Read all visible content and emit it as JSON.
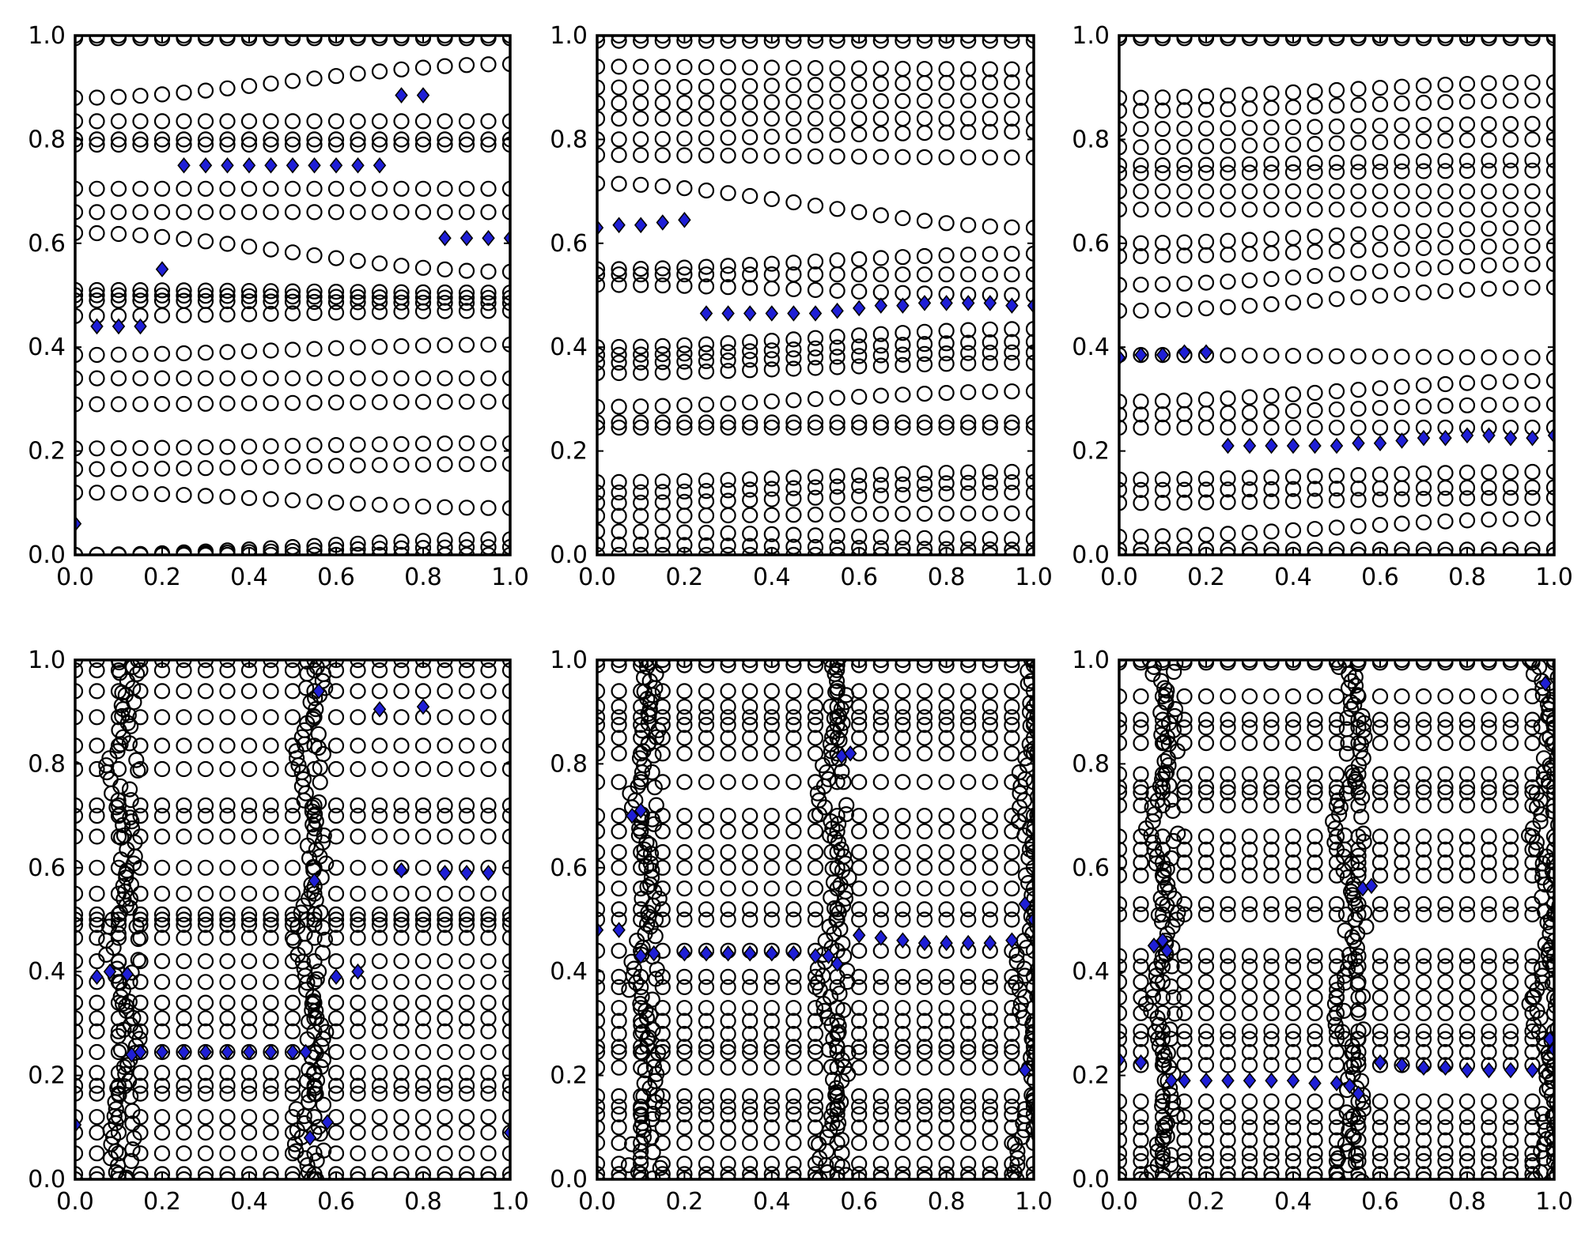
{
  "figure": {
    "colors": {
      "circle_edge": "#000000",
      "diamond_fill": "#1f1fd6",
      "diamond_edge": "#000000",
      "frame": "#000000"
    }
  },
  "chart_data": [
    {
      "type": "scatter",
      "panel": "top-left",
      "xlim": [
        0,
        1
      ],
      "ylim": [
        0,
        1
      ],
      "grid": false,
      "x_ticks": [
        "0.0",
        "0.2",
        "0.4",
        "0.6",
        "0.8",
        "1.0"
      ],
      "y_ticks": [
        "0.0",
        "0.2",
        "0.4",
        "0.6",
        "0.8",
        "1.0"
      ],
      "layout": "layered",
      "circle_levels": [
        [
          0.0,
          0.0
        ],
        [
          0.0,
          0.015
        ],
        [
          0.0,
          0.03
        ],
        [
          0.12,
          0.09
        ],
        [
          0.165,
          0.175
        ],
        [
          0.205,
          0.215
        ],
        [
          0.29,
          0.295
        ],
        [
          0.34,
          0.34
        ],
        [
          0.385,
          0.405
        ],
        [
          0.46,
          0.47
        ],
        [
          0.49,
          0.485
        ],
        [
          0.5,
          0.495
        ],
        [
          0.51,
          0.505
        ],
        [
          0.62,
          0.545
        ],
        [
          0.66,
          0.66
        ],
        [
          0.705,
          0.705
        ],
        [
          0.79,
          0.79
        ],
        [
          0.8,
          0.8
        ],
        [
          0.835,
          0.835
        ],
        [
          0.88,
          0.945
        ],
        [
          0.995,
          0.995
        ],
        [
          1.0,
          1.0
        ]
      ],
      "diamonds": [
        {
          "x": 0.0,
          "y": 0.06
        },
        {
          "x": 0.05,
          "y": 0.44
        },
        {
          "x": 0.1,
          "y": 0.44
        },
        {
          "x": 0.15,
          "y": 0.44
        },
        {
          "x": 0.2,
          "y": 0.55
        },
        {
          "x": 0.25,
          "y": 0.75
        },
        {
          "x": 0.3,
          "y": 0.75
        },
        {
          "x": 0.35,
          "y": 0.75
        },
        {
          "x": 0.4,
          "y": 0.75
        },
        {
          "x": 0.45,
          "y": 0.75
        },
        {
          "x": 0.5,
          "y": 0.75
        },
        {
          "x": 0.55,
          "y": 0.75
        },
        {
          "x": 0.6,
          "y": 0.75
        },
        {
          "x": 0.65,
          "y": 0.75
        },
        {
          "x": 0.7,
          "y": 0.75
        },
        {
          "x": 0.75,
          "y": 0.885
        },
        {
          "x": 0.8,
          "y": 0.885
        },
        {
          "x": 0.85,
          "y": 0.61
        },
        {
          "x": 0.9,
          "y": 0.61
        },
        {
          "x": 0.95,
          "y": 0.61
        },
        {
          "x": 1.0,
          "y": 0.61
        }
      ]
    },
    {
      "type": "scatter",
      "panel": "top-middle",
      "xlim": [
        0,
        1
      ],
      "ylim": [
        0,
        1
      ],
      "grid": false,
      "x_ticks": [
        "0.0",
        "0.2",
        "0.4",
        "0.6",
        "0.8",
        "1.0"
      ],
      "y_ticks": [
        "0.0",
        "0.2",
        "0.4",
        "0.6",
        "0.8",
        "1.0"
      ],
      "layout": "layered",
      "circle_levels": [
        [
          0.0,
          0.0
        ],
        [
          0.02,
          0.01
        ],
        [
          0.045,
          0.03
        ],
        [
          0.075,
          0.08
        ],
        [
          0.1,
          0.12
        ],
        [
          0.12,
          0.14
        ],
        [
          0.14,
          0.16
        ],
        [
          0.245,
          0.245
        ],
        [
          0.255,
          0.255
        ],
        [
          0.285,
          0.315
        ],
        [
          0.35,
          0.37
        ],
        [
          0.37,
          0.39
        ],
        [
          0.385,
          0.41
        ],
        [
          0.4,
          0.435
        ],
        [
          0.52,
          0.5
        ],
        [
          0.54,
          0.54
        ],
        [
          0.55,
          0.58
        ],
        [
          0.715,
          0.63
        ],
        [
          0.77,
          0.765
        ],
        [
          0.8,
          0.815
        ],
        [
          0.84,
          0.84
        ],
        [
          0.87,
          0.875
        ],
        [
          0.9,
          0.91
        ],
        [
          0.94,
          0.935
        ],
        [
          0.99,
          0.99
        ],
        [
          1.0,
          1.0
        ]
      ],
      "diamonds": [
        {
          "x": 0.0,
          "y": 0.63
        },
        {
          "x": 0.05,
          "y": 0.635
        },
        {
          "x": 0.1,
          "y": 0.635
        },
        {
          "x": 0.15,
          "y": 0.64
        },
        {
          "x": 0.2,
          "y": 0.645
        },
        {
          "x": 0.25,
          "y": 0.465
        },
        {
          "x": 0.3,
          "y": 0.465
        },
        {
          "x": 0.35,
          "y": 0.465
        },
        {
          "x": 0.4,
          "y": 0.465
        },
        {
          "x": 0.45,
          "y": 0.465
        },
        {
          "x": 0.5,
          "y": 0.465
        },
        {
          "x": 0.55,
          "y": 0.47
        },
        {
          "x": 0.6,
          "y": 0.475
        },
        {
          "x": 0.65,
          "y": 0.48
        },
        {
          "x": 0.7,
          "y": 0.48
        },
        {
          "x": 0.75,
          "y": 0.485
        },
        {
          "x": 0.8,
          "y": 0.485
        },
        {
          "x": 0.85,
          "y": 0.485
        },
        {
          "x": 0.9,
          "y": 0.485
        },
        {
          "x": 0.95,
          "y": 0.48
        },
        {
          "x": 1.0,
          "y": 0.48
        }
      ]
    },
    {
      "type": "scatter",
      "panel": "top-right",
      "xlim": [
        0,
        1
      ],
      "ylim": [
        0,
        1
      ],
      "grid": false,
      "x_ticks": [
        "0.0",
        "0.2",
        "0.4",
        "0.6",
        "0.8",
        "1.0"
      ],
      "y_ticks": [
        "0.0",
        "0.2",
        "0.4",
        "0.6",
        "0.8",
        "1.0"
      ],
      "layout": "layered",
      "circle_levels": [
        [
          0.0,
          0.0
        ],
        [
          0.01,
          0.01
        ],
        [
          0.035,
          0.07
        ],
        [
          0.1,
          0.11
        ],
        [
          0.125,
          0.13
        ],
        [
          0.145,
          0.16
        ],
        [
          0.245,
          0.245
        ],
        [
          0.27,
          0.29
        ],
        [
          0.295,
          0.335
        ],
        [
          0.385,
          0.38
        ],
        [
          0.47,
          0.515
        ],
        [
          0.52,
          0.56
        ],
        [
          0.575,
          0.595
        ],
        [
          0.6,
          0.63
        ],
        [
          0.665,
          0.665
        ],
        [
          0.7,
          0.7
        ],
        [
          0.735,
          0.74
        ],
        [
          0.75,
          0.76
        ],
        [
          0.785,
          0.8
        ],
        [
          0.82,
          0.83
        ],
        [
          0.855,
          0.875
        ],
        [
          0.88,
          0.91
        ],
        [
          0.995,
          0.995
        ],
        [
          1.0,
          1.0
        ]
      ],
      "diamonds": [
        {
          "x": 0.0,
          "y": 0.38
        },
        {
          "x": 0.05,
          "y": 0.385
        },
        {
          "x": 0.1,
          "y": 0.385
        },
        {
          "x": 0.15,
          "y": 0.39
        },
        {
          "x": 0.2,
          "y": 0.39
        },
        {
          "x": 0.25,
          "y": 0.21
        },
        {
          "x": 0.3,
          "y": 0.21
        },
        {
          "x": 0.35,
          "y": 0.21
        },
        {
          "x": 0.4,
          "y": 0.21
        },
        {
          "x": 0.45,
          "y": 0.21
        },
        {
          "x": 0.5,
          "y": 0.21
        },
        {
          "x": 0.55,
          "y": 0.215
        },
        {
          "x": 0.6,
          "y": 0.215
        },
        {
          "x": 0.65,
          "y": 0.22
        },
        {
          "x": 0.7,
          "y": 0.225
        },
        {
          "x": 0.75,
          "y": 0.225
        },
        {
          "x": 0.8,
          "y": 0.23
        },
        {
          "x": 0.85,
          "y": 0.23
        },
        {
          "x": 0.9,
          "y": 0.225
        },
        {
          "x": 0.95,
          "y": 0.225
        },
        {
          "x": 1.0,
          "y": 0.23
        }
      ]
    },
    {
      "type": "scatter",
      "panel": "bottom-left",
      "xlim": [
        0,
        1
      ],
      "ylim": [
        0,
        1
      ],
      "grid": false,
      "x_ticks": [
        "0.0",
        "0.2",
        "0.4",
        "0.6",
        "0.8",
        "1.0"
      ],
      "y_ticks": [
        "0.0",
        "0.2",
        "0.4",
        "0.6",
        "0.8",
        "1.0"
      ],
      "layout": "banded",
      "circle_rows": [
        0.0,
        0.01,
        0.05,
        0.09,
        0.12,
        0.165,
        0.18,
        0.205,
        0.245,
        0.285,
        0.31,
        0.34,
        0.38,
        0.42,
        0.465,
        0.49,
        0.5,
        0.51,
        0.55,
        0.6,
        0.66,
        0.7,
        0.72,
        0.79,
        0.835,
        0.89,
        0.94,
        0.98,
        1.0
      ],
      "circle_columns": [
        0.0,
        0.05,
        0.1,
        0.15,
        0.2,
        0.25,
        0.3,
        0.35,
        0.4,
        0.45,
        0.5,
        0.55,
        0.6,
        0.65,
        0.7,
        0.75,
        0.8,
        0.85,
        0.9,
        0.95,
        1.0
      ],
      "dense_bands": [
        0.11,
        0.54
      ],
      "diamonds": [
        {
          "x": 0.0,
          "y": 0.105
        },
        {
          "x": 0.05,
          "y": 0.39
        },
        {
          "x": 0.08,
          "y": 0.4
        },
        {
          "x": 0.12,
          "y": 0.395
        },
        {
          "x": 0.13,
          "y": 0.24
        },
        {
          "x": 0.15,
          "y": 0.245
        },
        {
          "x": 0.2,
          "y": 0.245
        },
        {
          "x": 0.25,
          "y": 0.245
        },
        {
          "x": 0.3,
          "y": 0.245
        },
        {
          "x": 0.35,
          "y": 0.245
        },
        {
          "x": 0.4,
          "y": 0.245
        },
        {
          "x": 0.45,
          "y": 0.245
        },
        {
          "x": 0.5,
          "y": 0.245
        },
        {
          "x": 0.53,
          "y": 0.245
        },
        {
          "x": 0.54,
          "y": 0.08
        },
        {
          "x": 0.58,
          "y": 0.11
        },
        {
          "x": 0.56,
          "y": 0.94
        },
        {
          "x": 0.55,
          "y": 0.575
        },
        {
          "x": 0.6,
          "y": 0.39
        },
        {
          "x": 0.65,
          "y": 0.4
        },
        {
          "x": 0.7,
          "y": 0.905
        },
        {
          "x": 0.8,
          "y": 0.91
        },
        {
          "x": 0.75,
          "y": 0.595
        },
        {
          "x": 0.85,
          "y": 0.59
        },
        {
          "x": 0.9,
          "y": 0.59
        },
        {
          "x": 0.95,
          "y": 0.59
        },
        {
          "x": 1.0,
          "y": 0.09
        }
      ]
    },
    {
      "type": "scatter",
      "panel": "bottom-middle",
      "xlim": [
        0,
        1
      ],
      "ylim": [
        0,
        1
      ],
      "grid": false,
      "x_ticks": [
        "0.0",
        "0.2",
        "0.4",
        "0.6",
        "0.8",
        "1.0"
      ],
      "y_ticks": [
        "0.0",
        "0.2",
        "0.4",
        "0.6",
        "0.8",
        "1.0"
      ],
      "layout": "banded",
      "circle_rows": [
        0.0,
        0.01,
        0.03,
        0.07,
        0.1,
        0.125,
        0.14,
        0.16,
        0.215,
        0.245,
        0.255,
        0.28,
        0.305,
        0.33,
        0.37,
        0.39,
        0.44,
        0.5,
        0.52,
        0.56,
        0.6,
        0.63,
        0.67,
        0.7,
        0.765,
        0.82,
        0.85,
        0.875,
        0.89,
        0.91,
        0.94,
        0.99,
        1.0
      ],
      "circle_columns": [
        0.0,
        0.05,
        0.1,
        0.15,
        0.2,
        0.25,
        0.3,
        0.35,
        0.4,
        0.45,
        0.5,
        0.55,
        0.6,
        0.65,
        0.7,
        0.75,
        0.8,
        0.85,
        0.9,
        0.95,
        1.0
      ],
      "dense_bands": [
        0.11,
        0.54,
        0.99
      ],
      "diamonds": [
        {
          "x": 0.0,
          "y": 0.48
        },
        {
          "x": 0.05,
          "y": 0.48
        },
        {
          "x": 0.08,
          "y": 0.7
        },
        {
          "x": 0.1,
          "y": 0.71
        },
        {
          "x": 0.1,
          "y": 0.43
        },
        {
          "x": 0.13,
          "y": 0.435
        },
        {
          "x": 0.2,
          "y": 0.435
        },
        {
          "x": 0.25,
          "y": 0.435
        },
        {
          "x": 0.3,
          "y": 0.435
        },
        {
          "x": 0.35,
          "y": 0.435
        },
        {
          "x": 0.4,
          "y": 0.435
        },
        {
          "x": 0.45,
          "y": 0.435
        },
        {
          "x": 0.5,
          "y": 0.43
        },
        {
          "x": 0.53,
          "y": 0.43
        },
        {
          "x": 0.55,
          "y": 0.415
        },
        {
          "x": 0.56,
          "y": 0.815
        },
        {
          "x": 0.58,
          "y": 0.82
        },
        {
          "x": 0.6,
          "y": 0.47
        },
        {
          "x": 0.65,
          "y": 0.465
        },
        {
          "x": 0.7,
          "y": 0.46
        },
        {
          "x": 0.75,
          "y": 0.455
        },
        {
          "x": 0.8,
          "y": 0.455
        },
        {
          "x": 0.85,
          "y": 0.455
        },
        {
          "x": 0.9,
          "y": 0.455
        },
        {
          "x": 0.95,
          "y": 0.46
        },
        {
          "x": 0.98,
          "y": 0.53
        },
        {
          "x": 1.0,
          "y": 0.5
        },
        {
          "x": 0.98,
          "y": 0.21
        }
      ]
    },
    {
      "type": "scatter",
      "panel": "bottom-right",
      "xlim": [
        0,
        1
      ],
      "ylim": [
        0,
        1
      ],
      "grid": false,
      "x_ticks": [
        "0.0",
        "0.2",
        "0.4",
        "0.6",
        "0.8",
        "1.0"
      ],
      "y_ticks": [
        "0.0",
        "0.2",
        "0.4",
        "0.6",
        "0.8",
        "1.0"
      ],
      "layout": "banded",
      "circle_rows": [
        0.0,
        0.01,
        0.035,
        0.05,
        0.075,
        0.1,
        0.12,
        0.15,
        0.22,
        0.245,
        0.27,
        0.285,
        0.32,
        0.35,
        0.38,
        0.41,
        0.43,
        0.51,
        0.53,
        0.585,
        0.61,
        0.635,
        0.66,
        0.72,
        0.745,
        0.755,
        0.78,
        0.84,
        0.87,
        0.885,
        0.93,
        0.995,
        1.0
      ],
      "circle_columns": [
        0.0,
        0.05,
        0.1,
        0.15,
        0.2,
        0.25,
        0.3,
        0.35,
        0.4,
        0.45,
        0.5,
        0.55,
        0.6,
        0.65,
        0.7,
        0.75,
        0.8,
        0.85,
        0.9,
        0.95,
        1.0
      ],
      "dense_bands": [
        0.1,
        0.53,
        0.98
      ],
      "diamonds": [
        {
          "x": 0.0,
          "y": 0.23
        },
        {
          "x": 0.05,
          "y": 0.225
        },
        {
          "x": 0.08,
          "y": 0.45
        },
        {
          "x": 0.1,
          "y": 0.46
        },
        {
          "x": 0.11,
          "y": 0.44
        },
        {
          "x": 0.12,
          "y": 0.19
        },
        {
          "x": 0.15,
          "y": 0.19
        },
        {
          "x": 0.2,
          "y": 0.19
        },
        {
          "x": 0.25,
          "y": 0.19
        },
        {
          "x": 0.3,
          "y": 0.19
        },
        {
          "x": 0.35,
          "y": 0.19
        },
        {
          "x": 0.4,
          "y": 0.19
        },
        {
          "x": 0.45,
          "y": 0.185
        },
        {
          "x": 0.5,
          "y": 0.185
        },
        {
          "x": 0.53,
          "y": 0.18
        },
        {
          "x": 0.55,
          "y": 0.165
        },
        {
          "x": 0.56,
          "y": 0.56
        },
        {
          "x": 0.58,
          "y": 0.565
        },
        {
          "x": 0.6,
          "y": 0.225
        },
        {
          "x": 0.65,
          "y": 0.22
        },
        {
          "x": 0.7,
          "y": 0.215
        },
        {
          "x": 0.75,
          "y": 0.215
        },
        {
          "x": 0.8,
          "y": 0.21
        },
        {
          "x": 0.85,
          "y": 0.21
        },
        {
          "x": 0.9,
          "y": 0.21
        },
        {
          "x": 0.95,
          "y": 0.21
        },
        {
          "x": 0.98,
          "y": 0.955
        },
        {
          "x": 0.99,
          "y": 0.27
        },
        {
          "x": 1.0,
          "y": 0.25
        }
      ]
    }
  ]
}
